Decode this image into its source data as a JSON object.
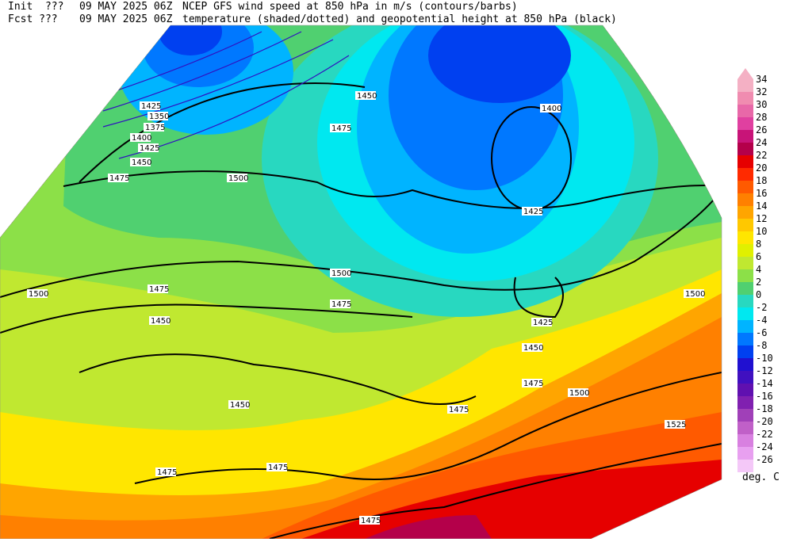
{
  "header": {
    "init_label": "Init  ???",
    "init_time": "09 MAY 2025 06Z",
    "title_line1": "NCEP GFS wind speed at 850 hPa in m/s (contours/barbs)",
    "fcst_label": "Fcst ???",
    "fcst_time": "09 MAY 2025 06Z",
    "title_line2": "temperature (shaded/dotted) and geopotential height at 850 hPa (black)"
  },
  "colorbar": {
    "levels": [
      34,
      32,
      30,
      28,
      26,
      24,
      22,
      20,
      18,
      16,
      14,
      12,
      10,
      8,
      6,
      4,
      2,
      0,
      -2,
      -4,
      -6,
      -8,
      -10,
      -12,
      -14,
      -16,
      -18,
      -20,
      -22,
      -24,
      -26
    ],
    "colors": [
      "#f4b0c4",
      "#f08cb0",
      "#e868a8",
      "#e040a0",
      "#c81478",
      "#b4004a",
      "#e60000",
      "#ff2a00",
      "#ff5a00",
      "#ff8000",
      "#ffa500",
      "#ffc800",
      "#ffe600",
      "#e0f000",
      "#c0e830",
      "#8ce048",
      "#50d070",
      "#28d8c0",
      "#00e8f0",
      "#00b4ff",
      "#0078ff",
      "#0040f0",
      "#2010d0",
      "#4010c0",
      "#6010b0",
      "#8020b0",
      "#a040b8",
      "#c060c8",
      "#d880e0",
      "#e8a0f0",
      "#f4c8f8"
    ],
    "unit": "deg. C"
  },
  "map": {
    "height_labels": [
      1400,
      1425,
      1475,
      1450,
      1500,
      1500,
      1500,
      1475,
      1475,
      1450,
      1425,
      1450,
      1475,
      1500,
      1475,
      1450,
      1475,
      1475,
      1475,
      1525,
      1500,
      1425,
      1350,
      1375,
      1400,
      1425,
      1450,
      1475
    ]
  }
}
